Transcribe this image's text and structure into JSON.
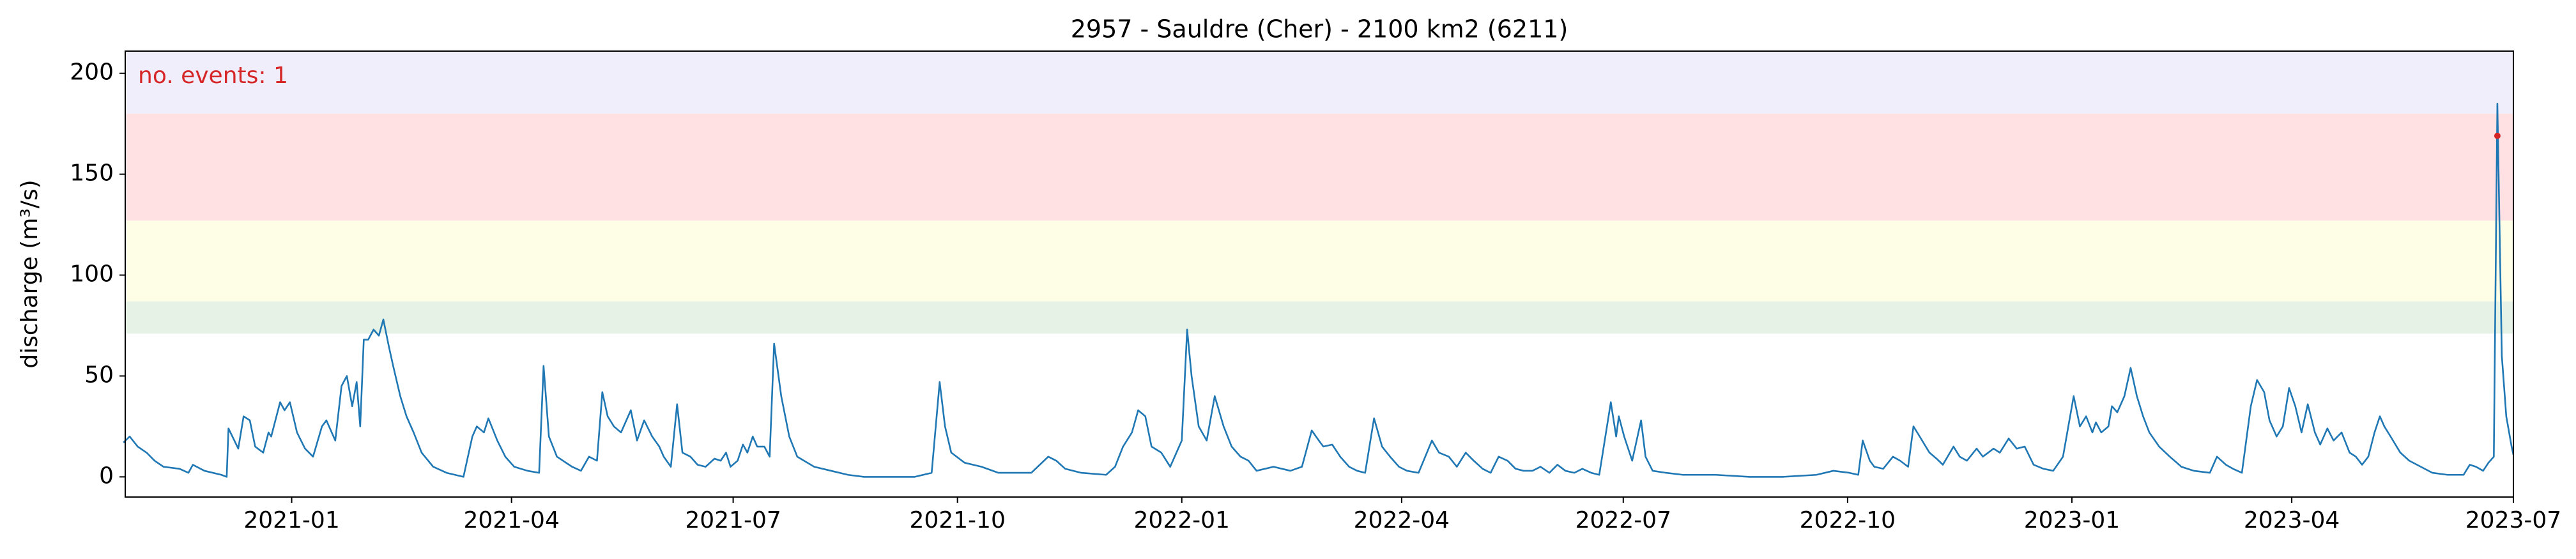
{
  "chart_data": {
    "type": "line",
    "title": "2957 - Sauldre (Cher) - 2100 km2 (6211)",
    "ylabel": "discharge (m³/s)",
    "annotation": "no. events: 1",
    "annotation_color": "#d62728",
    "xlim": [
      2020.813,
      2023.496
    ],
    "xticks": [
      {
        "value": 2021.0,
        "label": "2021-01"
      },
      {
        "value": 2021.247,
        "label": "2021-04"
      },
      {
        "value": 2021.496,
        "label": "2021-07"
      },
      {
        "value": 2021.748,
        "label": "2021-10"
      },
      {
        "value": 2022.0,
        "label": "2022-01"
      },
      {
        "value": 2022.247,
        "label": "2022-04"
      },
      {
        "value": 2022.496,
        "label": "2022-07"
      },
      {
        "value": 2022.748,
        "label": "2022-10"
      },
      {
        "value": 2023.0,
        "label": "2023-01"
      },
      {
        "value": 2023.247,
        "label": "2023-04"
      },
      {
        "value": 2023.496,
        "label": "2023-07"
      }
    ],
    "ylim": [
      -10,
      211
    ],
    "yticks": [
      0,
      50,
      100,
      150,
      200
    ],
    "bands": [
      {
        "range": [
          71,
          87
        ],
        "color": "#e5f2e5"
      },
      {
        "range": [
          87,
          127
        ],
        "color": "#fefee6"
      },
      {
        "range": [
          127,
          180
        ],
        "color": "#ffe1e4"
      },
      {
        "range": [
          180,
          211
        ],
        "color": "#f0eefa"
      }
    ],
    "x": [
      2020.811,
      2020.818,
      2020.827,
      2020.837,
      2020.846,
      2020.856,
      2020.874,
      2020.884,
      2020.889,
      2020.902,
      2020.921,
      2020.927,
      2020.929,
      2020.94,
      2020.946,
      2020.953,
      2020.959,
      2020.968,
      2020.974,
      2020.977,
      2020.987,
      2020.992,
      2020.998,
      2021.006,
      2021.015,
      2021.024,
      2021.034,
      2021.039,
      2021.049,
      2021.056,
      2021.062,
      2021.068,
      2021.073,
      2021.077,
      2021.081,
      2021.086,
      2021.092,
      2021.098,
      2021.103,
      2021.109,
      2021.114,
      2021.122,
      2021.129,
      2021.137,
      2021.146,
      2021.159,
      2021.174,
      2021.193,
      2021.203,
      2021.208,
      2021.216,
      2021.221,
      2021.231,
      2021.24,
      2021.25,
      2021.265,
      2021.278,
      2021.283,
      2021.289,
      2021.298,
      2021.315,
      2021.325,
      2021.334,
      2021.343,
      2021.349,
      2021.355,
      2021.362,
      2021.37,
      2021.381,
      2021.388,
      2021.396,
      2021.405,
      2021.413,
      2021.418,
      2021.426,
      2021.433,
      2021.439,
      2021.448,
      2021.456,
      2021.465,
      2021.475,
      2021.482,
      2021.488,
      2021.493,
      2021.501,
      2021.507,
      2021.512,
      2021.518,
      2021.523,
      2021.531,
      2021.537,
      2021.542,
      2021.55,
      2021.559,
      2021.568,
      2021.587,
      2021.606,
      2021.625,
      2021.643,
      2021.681,
      2021.7,
      2021.719,
      2021.728,
      2021.734,
      2021.741,
      2021.756,
      2021.775,
      2021.794,
      2021.812,
      2021.831,
      2021.85,
      2021.859,
      2021.869,
      2021.887,
      2021.915,
      2021.925,
      2021.934,
      2021.944,
      2021.951,
      2021.959,
      2021.966,
      2021.977,
      2021.987,
      2021.992,
      2022.0,
      2022.006,
      2022.011,
      2022.019,
      2022.028,
      2022.037,
      2022.047,
      2022.056,
      2022.066,
      2022.075,
      2022.084,
      2022.103,
      2022.122,
      2022.135,
      2022.146,
      2022.154,
      2022.159,
      2022.169,
      2022.178,
      2022.188,
      2022.197,
      2022.206,
      2022.216,
      2022.225,
      2022.234,
      2022.244,
      2022.253,
      2022.266,
      2022.281,
      2022.289,
      2022.3,
      2022.309,
      2022.319,
      2022.328,
      2022.338,
      2022.347,
      2022.356,
      2022.366,
      2022.375,
      2022.384,
      2022.394,
      2022.403,
      2022.413,
      2022.422,
      2022.431,
      2022.441,
      2022.45,
      2022.46,
      2022.469,
      2022.482,
      2022.488,
      2022.491,
      2022.497,
      2022.506,
      2022.516,
      2022.521,
      2022.529,
      2022.544,
      2022.563,
      2022.581,
      2022.6,
      2022.638,
      2022.675,
      2022.713,
      2022.732,
      2022.75,
      2022.76,
      2022.765,
      2022.773,
      2022.778,
      2022.788,
      2022.799,
      2022.807,
      2022.816,
      2022.822,
      2022.829,
      2022.84,
      2022.848,
      2022.855,
      2022.867,
      2022.874,
      2022.882,
      2022.893,
      2022.9,
      2022.912,
      2022.919,
      2022.929,
      2022.938,
      2022.947,
      2022.957,
      2022.968,
      2022.979,
      2022.99,
      2023.002,
      2023.009,
      2023.016,
      2023.023,
      2023.027,
      2023.033,
      2023.041,
      2023.045,
      2023.051,
      2023.059,
      2023.066,
      2023.073,
      2023.08,
      2023.087,
      2023.098,
      2023.11,
      2023.123,
      2023.137,
      2023.155,
      2023.163,
      2023.173,
      2023.181,
      2023.191,
      2023.201,
      2023.208,
      2023.216,
      2023.222,
      2023.23,
      2023.237,
      2023.244,
      2023.251,
      2023.258,
      2023.265,
      2023.273,
      2023.279,
      2023.287,
      2023.294,
      2023.303,
      2023.312,
      2023.319,
      2023.326,
      2023.333,
      2023.34,
      2023.346,
      2023.351,
      2023.358,
      2023.369,
      2023.379,
      2023.392,
      2023.405,
      2023.422,
      2023.44,
      2023.447,
      2023.454,
      2023.462,
      2023.468,
      2023.474,
      2023.478,
      2023.483,
      2023.488,
      2023.494,
      2023.496
    ],
    "series": [
      {
        "color": "#1f77b4",
        "values": [
          17,
          20,
          15,
          12,
          8,
          5,
          4,
          2,
          6,
          3,
          1,
          0,
          24,
          14,
          30,
          28,
          15,
          12,
          22,
          20,
          37,
          33,
          37,
          22,
          14,
          10,
          25,
          28,
          18,
          45,
          50,
          35,
          47,
          25,
          68,
          68,
          73,
          70,
          78,
          65,
          55,
          40,
          30,
          22,
          12,
          5,
          2,
          0,
          20,
          25,
          22,
          29,
          18,
          10,
          5,
          3,
          2,
          55,
          20,
          10,
          5,
          3,
          10,
          8,
          42,
          30,
          25,
          22,
          33,
          18,
          28,
          20,
          15,
          10,
          5,
          36,
          12,
          10,
          6,
          5,
          9,
          8,
          12,
          5,
          8,
          16,
          12,
          20,
          15,
          15,
          10,
          66,
          40,
          20,
          10,
          5,
          3,
          1,
          0,
          0,
          0,
          2,
          47,
          25,
          12,
          7,
          5,
          2,
          2,
          2,
          10,
          8,
          4,
          2,
          1,
          5,
          15,
          22,
          33,
          30,
          15,
          12,
          5,
          10,
          18,
          73,
          50,
          25,
          18,
          40,
          25,
          15,
          10,
          8,
          3,
          5,
          3,
          5,
          23,
          18,
          15,
          16,
          10,
          5,
          3,
          2,
          29,
          15,
          10,
          5,
          3,
          2,
          18,
          12,
          10,
          5,
          12,
          8,
          4,
          2,
          10,
          8,
          4,
          3,
          3,
          5,
          2,
          6,
          3,
          2,
          4,
          2,
          1,
          37,
          20,
          30,
          20,
          8,
          28,
          10,
          3,
          2,
          1,
          1,
          1,
          0,
          0,
          1,
          3,
          2,
          1,
          18,
          8,
          5,
          4,
          10,
          8,
          5,
          25,
          20,
          12,
          9,
          6,
          15,
          10,
          8,
          14,
          10,
          14,
          12,
          19,
          14,
          15,
          6,
          4,
          3,
          10,
          40,
          25,
          30,
          22,
          27,
          22,
          25,
          35,
          32,
          40,
          54,
          40,
          30,
          22,
          15,
          10,
          5,
          3,
          2,
          10,
          6,
          4,
          2,
          35,
          48,
          42,
          28,
          20,
          25,
          44,
          35,
          22,
          36,
          22,
          16,
          24,
          18,
          22,
          12,
          10,
          6,
          10,
          22,
          30,
          25,
          20,
          12,
          8,
          5,
          2,
          1,
          1,
          6,
          5,
          3,
          7,
          10,
          185,
          60,
          30,
          15,
          11
        ]
      }
    ],
    "events": {
      "x": [
        2023.478
      ],
      "values": [
        169
      ],
      "color": "#d62728"
    }
  }
}
